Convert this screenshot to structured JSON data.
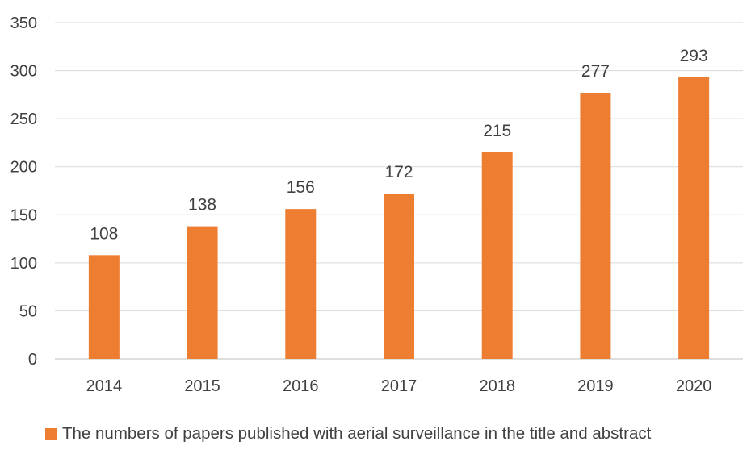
{
  "chart_data": {
    "type": "bar",
    "title": "",
    "xlabel": "",
    "ylabel": "",
    "categories": [
      "2014",
      "2015",
      "2016",
      "2017",
      "2018",
      "2019",
      "2020"
    ],
    "series": [
      {
        "name": "The numbers of papers published with aerial surveillance in the title and abstract",
        "values": [
          108,
          138,
          156,
          172,
          215,
          277,
          293
        ],
        "color": "#ED7D31"
      }
    ],
    "ylim": [
      0,
      350
    ],
    "yticks": [
      0,
      50,
      100,
      150,
      200,
      250,
      300,
      350
    ],
    "grid": true,
    "data_labels": true,
    "legend_position": "bottom"
  }
}
